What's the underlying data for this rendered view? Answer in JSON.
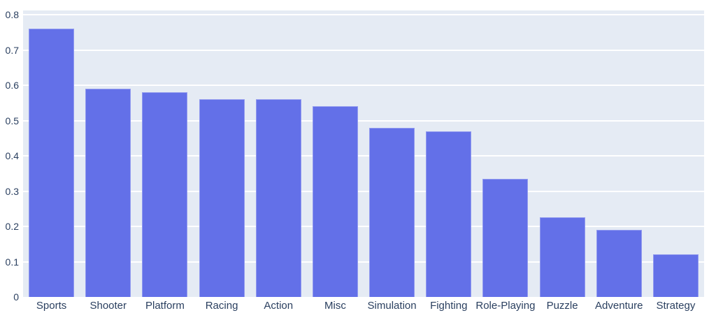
{
  "chart_data": {
    "type": "bar",
    "categories": [
      "Sports",
      "Shooter",
      "Platform",
      "Racing",
      "Action",
      "Misc",
      "Simulation",
      "Fighting",
      "Role-Playing",
      "Puzzle",
      "Adventure",
      "Strategy"
    ],
    "values": [
      0.76,
      0.59,
      0.58,
      0.56,
      0.56,
      0.54,
      0.48,
      0.47,
      0.335,
      0.225,
      0.19,
      0.12
    ],
    "title": "",
    "xlabel": "",
    "ylabel": "",
    "ylim": [
      0,
      0.812
    ],
    "yticks": [
      0,
      0.1,
      0.2,
      0.3,
      0.4,
      0.5,
      0.6,
      0.7,
      0.8
    ],
    "ytick_labels": [
      "0",
      "0.1",
      "0.2",
      "0.3",
      "0.4",
      "0.5",
      "0.6",
      "0.7",
      "0.8"
    ],
    "grid": true,
    "legend": false,
    "bar_gap_fraction": 0.2
  },
  "colors": {
    "bar_fill": "#6370e8",
    "plot_background": "#e5ebf4",
    "gridline": "#ffffff",
    "tick_text": "#2a3f5f",
    "outer_background": "#ffffff"
  }
}
